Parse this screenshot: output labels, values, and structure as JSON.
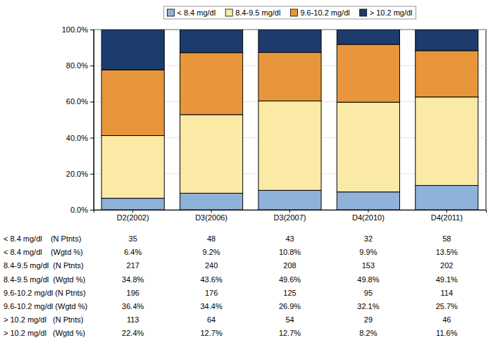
{
  "chart_data": {
    "type": "bar",
    "stacked": true,
    "grid": true,
    "legend": "top",
    "categories": [
      "D2(2002)",
      "D3(2006)",
      "D3(2007)",
      "D4(2010)",
      "D4(2011)"
    ],
    "series": [
      {
        "name": "< 8.4 mg/dl",
        "color": "#8fb2da",
        "values": [
          6.4,
          9.2,
          10.8,
          9.9,
          13.5
        ]
      },
      {
        "name": "8.4-9.5 mg/dl",
        "color": "#fbe9a6",
        "values": [
          34.8,
          43.6,
          49.6,
          49.8,
          49.1
        ]
      },
      {
        "name": "9.6-10.2 mg/dl",
        "color": "#e8963c",
        "values": [
          36.4,
          34.4,
          26.9,
          32.1,
          25.7
        ]
      },
      {
        "name": "> 10.2 mg/dl",
        "color": "#1c3c6e",
        "values": [
          22.4,
          12.7,
          12.7,
          8.2,
          11.6
        ]
      }
    ],
    "ylim": [
      0,
      100
    ],
    "yticks": [
      {
        "value": 0,
        "label": "0.0%"
      },
      {
        "value": 20,
        "label": "20.0%"
      },
      {
        "value": 40,
        "label": "40.0%"
      },
      {
        "value": 60,
        "label": "60.0%"
      },
      {
        "value": 80,
        "label": "80.0%"
      },
      {
        "value": 100,
        "label": "100.0%"
      }
    ]
  },
  "table": {
    "rows": [
      {
        "label": "< 8.4 mg/dl    (N Ptnts)",
        "values": [
          35,
          48,
          43,
          32,
          58
        ]
      },
      {
        "label": "< 8.4 mg/dl    (Wgtd %)",
        "values": [
          "6.4%",
          "9.2%",
          "10.8%",
          "9.9%",
          "13.5%"
        ]
      },
      {
        "label": "8.4-9.5 mg/dl  (N Ptnts)",
        "values": [
          217,
          240,
          208,
          153,
          202
        ]
      },
      {
        "label": "8.4-9.5 mg/dl  (Wgtd %)",
        "values": [
          "34.8%",
          "43.6%",
          "49.6%",
          "49.8%",
          "49.1%"
        ]
      },
      {
        "label": "9.6-10.2 mg/dl (N Ptnts)",
        "values": [
          196,
          176,
          125,
          95,
          114
        ]
      },
      {
        "label": "9.6-10.2 mg/dl (Wgtd %)",
        "values": [
          "36.4%",
          "34.4%",
          "26.9%",
          "32.1%",
          "25.7%"
        ]
      },
      {
        "label": "> 10.2 mg/dl   (N Ptnts)",
        "values": [
          113,
          64,
          54,
          29,
          46
        ]
      },
      {
        "label": "> 10.2 mg/dl   (Wgtd %)",
        "values": [
          "22.4%",
          "12.7%",
          "12.7%",
          "8.2%",
          "11.6%"
        ]
      }
    ]
  }
}
